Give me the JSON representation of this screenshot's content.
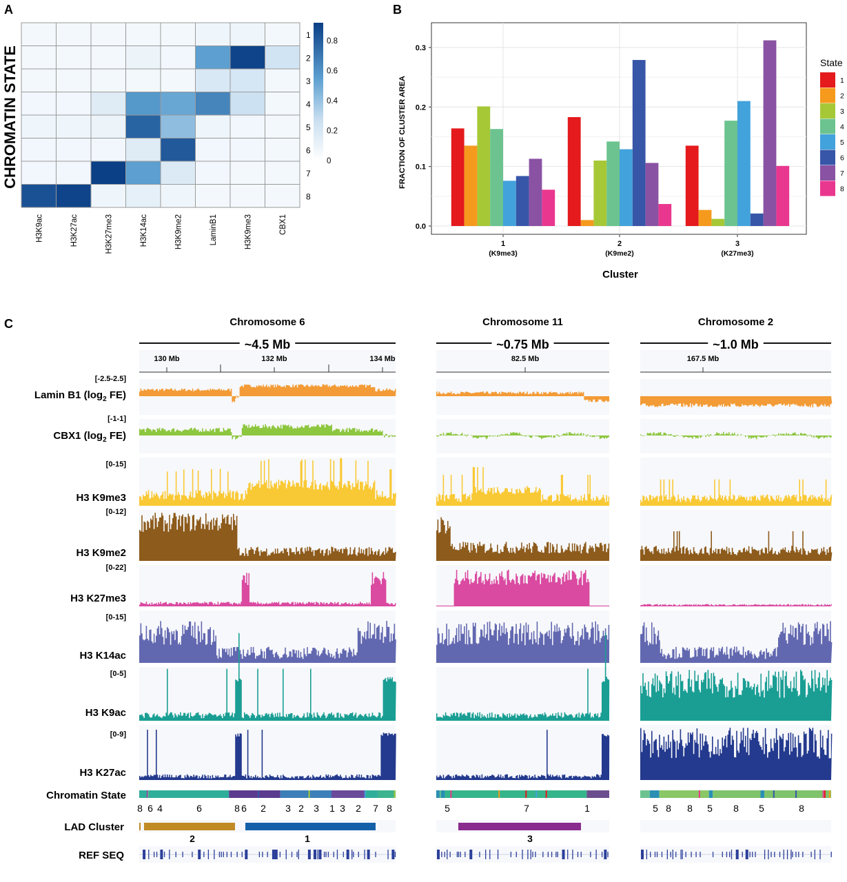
{
  "panels": {
    "a": "A",
    "b": "B",
    "c": "C"
  },
  "heatmap": {
    "ylabel": "CHROMATIN STATE",
    "columns": [
      "H3K9ac",
      "H3K27ac",
      "H3K27me3",
      "H3K14ac",
      "H3K9me2",
      "LaminB1",
      "H3K9me3",
      "CBX1"
    ],
    "rows": [
      "1",
      "2",
      "3",
      "4",
      "5",
      "6",
      "7",
      "8"
    ],
    "values": [
      [
        0.02,
        0.02,
        0.02,
        0.02,
        0.02,
        0.04,
        0.04,
        0.02
      ],
      [
        0.02,
        0.02,
        0.02,
        0.06,
        0.03,
        0.55,
        0.9,
        0.22
      ],
      [
        0.02,
        0.02,
        0.02,
        0.02,
        0.02,
        0.18,
        0.2,
        0.02
      ],
      [
        0.03,
        0.03,
        0.14,
        0.58,
        0.52,
        0.65,
        0.25,
        0.02
      ],
      [
        0.04,
        0.04,
        0.06,
        0.78,
        0.42,
        0.04,
        0.03,
        0.02
      ],
      [
        0.03,
        0.03,
        0.03,
        0.14,
        0.82,
        0.03,
        0.03,
        0.02
      ],
      [
        0.03,
        0.03,
        0.92,
        0.55,
        0.16,
        0.03,
        0.02,
        0.02
      ],
      [
        0.85,
        0.9,
        0.04,
        0.1,
        0.04,
        0.02,
        0.02,
        0.02
      ]
    ],
    "colorbar_ticks": [
      "0",
      "0.2",
      "0.4",
      "0.6",
      "0.8"
    ],
    "colorbar_max": 0.92,
    "low_color": "#f6fafd",
    "high_color": "#0b3f86"
  },
  "chart_data": {
    "type": "bar",
    "categories": [
      "1",
      "2",
      "3"
    ],
    "category_sublabels": [
      "(K9me3)",
      "(K9me2)",
      "(K27me3)"
    ],
    "xlabel": "Cluster",
    "ylabel": "FRACTION OF CLUSTER AREA",
    "ylim": [
      0,
      0.33
    ],
    "yticks": [
      "0.0",
      "0.1",
      "0.2",
      "0.3"
    ],
    "ytick_values": [
      0,
      0.1,
      0.2,
      0.3
    ],
    "grid": true,
    "legend_title": "State",
    "legend_position": "right",
    "series": [
      {
        "name": "1",
        "color": "#e41a1c",
        "values": [
          0.164,
          0.183,
          0.135
        ]
      },
      {
        "name": "2",
        "color": "#f59a1d",
        "values": [
          0.135,
          0.01,
          0.027
        ]
      },
      {
        "name": "3",
        "color": "#a6c837",
        "values": [
          0.201,
          0.11,
          0.012
        ]
      },
      {
        "name": "4",
        "color": "#6cc38f",
        "values": [
          0.163,
          0.142,
          0.177
        ]
      },
      {
        "name": "5",
        "color": "#42a2dc",
        "values": [
          0.076,
          0.129,
          0.21
        ]
      },
      {
        "name": "6",
        "color": "#3756a8",
        "values": [
          0.084,
          0.279,
          0.021
        ]
      },
      {
        "name": "7",
        "color": "#8a52a3",
        "values": [
          0.113,
          0.106,
          0.312
        ]
      },
      {
        "name": "8",
        "color": "#e9378f",
        "values": [
          0.061,
          0.037,
          0.101
        ]
      }
    ]
  },
  "genome": {
    "regions": [
      {
        "title": "Chromosome 6",
        "span": "~4.5 Mb",
        "ticks": [
          "130 Mb",
          "132 Mb",
          "134 Mb"
        ],
        "states": [
          "8",
          "6",
          "4",
          "6",
          "8",
          "6",
          "2",
          "3",
          "2",
          "3",
          "1",
          "3",
          "2",
          "7",
          "8"
        ],
        "lad": [
          {
            "label": "2",
            "color": "#c08a25"
          },
          {
            "label": "1",
            "color": "#1561a9"
          }
        ]
      },
      {
        "title": "Chromosome 11",
        "span": "~0.75 Mb",
        "ticks": [
          "82.5 Mb"
        ],
        "states": [
          "5",
          "7",
          "1"
        ],
        "lad": [
          {
            "label": "3",
            "color": "#8a2b8e"
          }
        ]
      },
      {
        "title": "Chromosome 2",
        "span": "~1.0 Mb",
        "ticks": [
          "167.5 Mb"
        ],
        "states": [
          "5",
          "8",
          "8",
          "5",
          "8",
          "5",
          "8"
        ],
        "lad": []
      }
    ],
    "tracks": [
      {
        "name": "Lamin B1 (log",
        "sub": "2",
        "suffix": " FE)",
        "range": "[-2.5-2.5]",
        "color": "#f39b36"
      },
      {
        "name": "CBX1 (log",
        "sub": "2",
        "suffix": " FE)",
        "range": "[-1-1]",
        "color": "#8dc63f"
      },
      {
        "name": "H3 K9me3",
        "range": "[0-15]",
        "color": "#f9c935"
      },
      {
        "name": "H3 K9me2",
        "range": "[0-12]",
        "color": "#8d5b1c"
      },
      {
        "name": "H3 K27me3",
        "range": "[0-22]",
        "color": "#da4aa0"
      },
      {
        "name": "H3 K14ac",
        "range": "[0-15]",
        "color": "#6268b0"
      },
      {
        "name": "H3 K9ac",
        "range": "[0-5]",
        "color": "#1a9e94"
      },
      {
        "name": "H3 K27ac",
        "range": "[0-9]",
        "color": "#243a8e"
      }
    ],
    "chromatin_state_label": "Chromatin State",
    "lad_label": "LAD Cluster",
    "refseq_label": "REF SEQ"
  }
}
